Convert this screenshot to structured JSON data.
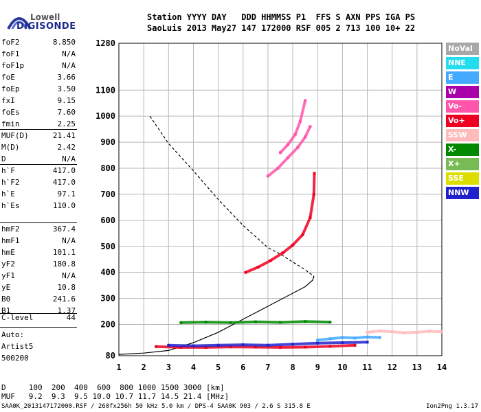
{
  "logo": {
    "top": "Lowell",
    "main": "DIGISONDE"
  },
  "header": {
    "line1": "Station YYYY DAY   DDD HHMMSS P1  FFS S AXN PPS IGA PS",
    "line2": "SaoLuis 2013 May27 147 172000 RSF 005 2 713 100 10+ 22"
  },
  "params_group1": [
    {
      "key": "foF2",
      "value": "8.850"
    },
    {
      "key": "foF1",
      "value": "N/A"
    },
    {
      "key": "foF1p",
      "value": "N/A"
    },
    {
      "key": "foE",
      "value": "3.66"
    },
    {
      "key": "foEp",
      "value": "3.50"
    },
    {
      "key": "fxI",
      "value": "9.15"
    },
    {
      "key": "foEs",
      "value": "7.60"
    },
    {
      "key": "fmin",
      "value": "2.25"
    }
  ],
  "params_group2": [
    {
      "key": "MUF(D)",
      "value": "21.41"
    },
    {
      "key": "M(D)",
      "value": "2.42"
    },
    {
      "key": "D",
      "value": "N/A"
    }
  ],
  "params_group3": [
    {
      "key": "h`F",
      "value": "417.0"
    },
    {
      "key": "h`F2",
      "value": "417.0"
    },
    {
      "key": "h`E",
      "value": "97.1"
    },
    {
      "key": "h`Es",
      "value": "110.0"
    }
  ],
  "params_group4": [
    {
      "key": "hmF2",
      "value": "367.4"
    },
    {
      "key": "hmF1",
      "value": "N/A"
    },
    {
      "key": "hmE",
      "value": "101.1"
    },
    {
      "key": "yF2",
      "value": "180.8"
    },
    {
      "key": "yF1",
      "value": "N/A"
    },
    {
      "key": "yE",
      "value": "10.8"
    },
    {
      "key": "B0",
      "value": "241.6"
    },
    {
      "key": "B1",
      "value": "1.37"
    }
  ],
  "params_group5": [
    {
      "key": "C-level",
      "value": "44"
    }
  ],
  "auto": {
    "line1": "Auto:",
    "line2": "Artist5",
    "line3": "500200"
  },
  "legend": [
    {
      "label": "NoVal",
      "color": "#a8a8a8"
    },
    {
      "label": "NNE",
      "color": "#22ddee"
    },
    {
      "label": "E",
      "color": "#44aaff"
    },
    {
      "label": "W",
      "color": "#aa00aa"
    },
    {
      "label": "Vo-",
      "color": "#ff55aa"
    },
    {
      "label": "Vo+",
      "color": "#ee0022"
    },
    {
      "label": "SSW",
      "color": "#ffbbbb"
    },
    {
      "label": "X-",
      "color": "#008800"
    },
    {
      "label": "X+",
      "color": "#77bb55"
    },
    {
      "label": "SSE",
      "color": "#dddd00"
    },
    {
      "label": "NNW",
      "color": "#2222cc"
    }
  ],
  "chart_data": {
    "type": "scatter",
    "xlabel": "",
    "ylabel": "",
    "xlim": [
      1,
      14
    ],
    "ylim": [
      80,
      1280
    ],
    "x_ticks": [
      1,
      2,
      3,
      4,
      5,
      6,
      7,
      8,
      9,
      10,
      11,
      12,
      13,
      14
    ],
    "y_ticks": [
      80,
      200,
      300,
      400,
      500,
      600,
      700,
      800,
      900,
      1000,
      1100,
      1280
    ],
    "grid": true,
    "series": [
      {
        "style": "solid",
        "color": "#000000",
        "x": [
          1,
          2,
          3,
          4,
          5,
          6,
          7,
          8,
          8.5,
          8.8,
          8.85
        ],
        "y": [
          85,
          90,
          100,
          130,
          170,
          220,
          270,
          320,
          345,
          370,
          385
        ]
      },
      {
        "style": "dashed",
        "color": "#000000",
        "x": [
          2.25,
          3,
          4,
          5,
          6,
          7,
          7.5,
          8,
          8.5,
          8.85,
          8.8
        ],
        "y": [
          1000,
          895,
          790,
          680,
          580,
          495,
          470,
          440,
          410,
          385,
          370
        ]
      },
      {
        "style": "trace",
        "color": "#ee0022",
        "x": [
          6.1,
          6.6,
          7.1,
          7.6,
          8.0,
          8.4,
          8.7,
          8.85,
          8.87
        ],
        "y": [
          400,
          420,
          445,
          475,
          505,
          545,
          610,
          700,
          780
        ]
      },
      {
        "style": "trace",
        "color": "#ff55aa",
        "x": [
          7.0,
          7.4,
          7.8,
          8.2,
          8.5,
          8.7
        ],
        "y": [
          770,
          800,
          840,
          880,
          920,
          960
        ]
      },
      {
        "style": "trace",
        "color": "#ff55aa",
        "x": [
          7.5,
          7.8,
          8.1,
          8.3,
          8.5
        ],
        "y": [
          860,
          890,
          930,
          980,
          1060
        ]
      },
      {
        "style": "trace",
        "color": "#ee0022",
        "x": [
          2.5,
          3.5,
          4.5,
          5.5,
          6.5,
          7.5,
          8.5,
          9.5,
          10.5
        ],
        "y": [
          115,
          112,
          112,
          114,
          113,
          112,
          113,
          116,
          120
        ]
      },
      {
        "style": "trace",
        "color": "#2222cc",
        "x": [
          3.0,
          4.0,
          5.0,
          6.0,
          7.0,
          8.0,
          9.0,
          10.0,
          11.0
        ],
        "y": [
          120,
          118,
          120,
          122,
          120,
          124,
          128,
          130,
          132
        ]
      },
      {
        "style": "trace",
        "color": "#44aaff",
        "x": [
          9.0,
          9.5,
          10.0,
          10.5,
          11.0,
          11.5
        ],
        "y": [
          140,
          145,
          150,
          148,
          152,
          150
        ]
      },
      {
        "style": "trace",
        "color": "#ffbbbb",
        "x": [
          11.0,
          11.5,
          12.0,
          12.5,
          13.0,
          13.5,
          14.0
        ],
        "y": [
          170,
          175,
          172,
          168,
          170,
          174,
          172
        ]
      },
      {
        "style": "trace",
        "color": "#008800",
        "x": [
          3.5,
          4.5,
          5.5,
          6.5,
          7.5,
          8.5,
          9.5
        ],
        "y": [
          207,
          209,
          207,
          210,
          208,
          211,
          209
        ]
      }
    ]
  },
  "footer": {
    "line1": "D     100  200  400  600  800 1000 1500 3000 [km]",
    "line2": "MUF   9.2  9.3  9.5 10.0 10.7 11.7 14.5 21.4 [MHz]",
    "note_left": "SAA0K_2013147172000.RSF / 260fx256h 50 kHz 5.0 km / DPS-4 SAA0K 903 / 2.6 S 315.8 E",
    "note_right": "Ion2Png 1.3.17"
  }
}
